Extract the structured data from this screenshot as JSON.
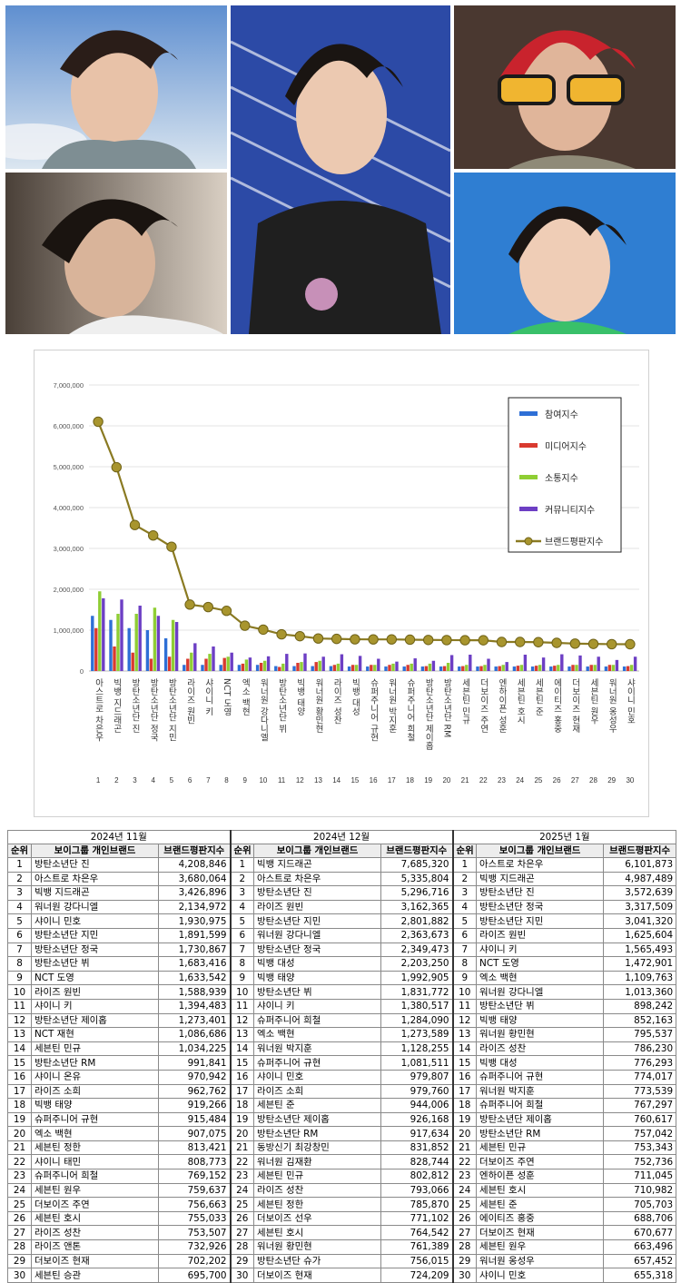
{
  "photos": [
    {
      "name": "photo-top-left",
      "bg": [
        "#6e93c8",
        "#c9d6e4"
      ]
    },
    {
      "name": "photo-bottom-left",
      "bg": [
        "#5a5048",
        "#d6ccc0"
      ]
    },
    {
      "name": "photo-center",
      "bg": [
        "#2b4aa0",
        "#e8e8f0"
      ]
    },
    {
      "name": "photo-top-right",
      "bg": [
        "#3a2a24",
        "#b08a70"
      ]
    },
    {
      "name": "photo-bottom-right",
      "bg": [
        "#2f7fd0",
        "#7fb6e8"
      ]
    }
  ],
  "chart_data": {
    "type": "bar",
    "title": "",
    "xlabel": "",
    "ylabel": "",
    "ylim": [
      0,
      7000000
    ],
    "yticks": [
      "0",
      "1,000,000",
      "2,000,000",
      "3,000,000",
      "4,000,000",
      "5,000,000",
      "6,000,000",
      "7,000,000"
    ],
    "grid": true,
    "legend_position": "top-right",
    "categories": [
      "아스트로 차은우",
      "빅뱅 지드래곤",
      "방탄소년단 진",
      "방탄소년단 정국",
      "방탄소년단 지민",
      "라이즈 원빈",
      "샤이니 키",
      "NCT 도영",
      "엑소 백현",
      "워너원 강다니엘",
      "방탄소년단 뷔",
      "빅뱅 태양",
      "워너원 황민현",
      "라이즈 성찬",
      "빅뱅 대성",
      "슈퍼주니어 규현",
      "워너원 박지훈",
      "슈퍼주니어 희철",
      "방탄소년단 제이홉",
      "방탄소년단 RM",
      "세븐틴 민규",
      "더보이즈 주연",
      "엔하이픈 성훈",
      "세븐틴 호시",
      "세븐틴 준",
      "에이티즈 홍중",
      "더보이즈 현재",
      "세븐틴 원우",
      "워너원 옹성우",
      "샤이니 민호"
    ],
    "rank_labels": [
      "1",
      "2",
      "3",
      "4",
      "5",
      "6",
      "7",
      "8",
      "9",
      "10",
      "11",
      "12",
      "13",
      "14",
      "15",
      "16",
      "17",
      "18",
      "19",
      "20",
      "21",
      "22",
      "23",
      "24",
      "25",
      "26",
      "27",
      "28",
      "29",
      "30"
    ],
    "series": [
      {
        "name": "참여지수",
        "color": "#2e6fd6",
        "type": "bar",
        "values": [
          1350000,
          1250000,
          1050000,
          1000000,
          800000,
          150000,
          150000,
          150000,
          150000,
          150000,
          120000,
          120000,
          120000,
          120000,
          110000,
          110000,
          110000,
          110000,
          110000,
          110000,
          110000,
          110000,
          110000,
          110000,
          110000,
          110000,
          110000,
          110000,
          110000,
          110000
        ]
      },
      {
        "name": "미디어지수",
        "color": "#d93a2f",
        "type": "bar",
        "values": [
          1050000,
          600000,
          450000,
          300000,
          350000,
          300000,
          300000,
          320000,
          180000,
          200000,
          100000,
          200000,
          220000,
          150000,
          150000,
          150000,
          150000,
          150000,
          120000,
          120000,
          120000,
          120000,
          120000,
          130000,
          130000,
          130000,
          150000,
          150000,
          150000,
          120000
        ]
      },
      {
        "name": "소통지수",
        "color": "#8fce34",
        "type": "bar",
        "values": [
          1950000,
          1400000,
          1400000,
          1550000,
          1250000,
          450000,
          420000,
          350000,
          280000,
          250000,
          180000,
          220000,
          250000,
          180000,
          150000,
          150000,
          180000,
          180000,
          180000,
          200000,
          150000,
          150000,
          150000,
          150000,
          150000,
          150000,
          150000,
          150000,
          150000,
          150000
        ]
      },
      {
        "name": "커뮤니티지수",
        "color": "#6d3fc4",
        "type": "bar",
        "values": [
          1780000,
          1750000,
          1600000,
          1350000,
          1200000,
          680000,
          600000,
          450000,
          330000,
          360000,
          420000,
          430000,
          350000,
          410000,
          370000,
          300000,
          230000,
          310000,
          250000,
          390000,
          400000,
          300000,
          220000,
          400000,
          330000,
          410000,
          380000,
          350000,
          270000,
          350000
        ]
      },
      {
        "name": "브랜드평판지수",
        "color": "#8a7a22",
        "type": "line",
        "values": [
          6101873,
          4987489,
          3572639,
          3317509,
          3041320,
          1625604,
          1565493,
          1472901,
          1109763,
          1013360,
          898242,
          852163,
          795537,
          786230,
          776293,
          774017,
          773539,
          767297,
          760617,
          757042,
          753343,
          752736,
          711045,
          710982,
          705703,
          688706,
          670677,
          663496,
          657452,
          655318
        ]
      }
    ]
  },
  "table": {
    "months": [
      "2024년 11월",
      "2024년 12월",
      "2025년 1월"
    ],
    "headers": {
      "rank": "순위",
      "name": "보이그룹 개인브랜드",
      "score": "브랜드평판지수"
    },
    "nov": [
      [
        "1",
        "방탄소년단 진",
        "4,208,846"
      ],
      [
        "2",
        "아스트로 차은우",
        "3,680,064"
      ],
      [
        "3",
        "빅뱅 지드래곤",
        "3,426,896"
      ],
      [
        "4",
        "워너원 강다니엘",
        "2,134,972"
      ],
      [
        "5",
        "샤이니 민호",
        "1,930,975"
      ],
      [
        "6",
        "방탄소년단 지민",
        "1,891,599"
      ],
      [
        "7",
        "방탄소년단 정국",
        "1,730,867"
      ],
      [
        "8",
        "방탄소년단 뷔",
        "1,683,416"
      ],
      [
        "9",
        "NCT 도영",
        "1,633,542"
      ],
      [
        "10",
        "라이즈 원빈",
        "1,588,939"
      ],
      [
        "11",
        "샤이니 키",
        "1,394,483"
      ],
      [
        "12",
        "방탄소년단 제이홉",
        "1,273,401"
      ],
      [
        "13",
        "NCT 재현",
        "1,086,686"
      ],
      [
        "14",
        "세븐틴 민규",
        "1,034,225"
      ],
      [
        "15",
        "방탄소년단 RM",
        "991,841"
      ],
      [
        "16",
        "샤이니 온유",
        "970,942"
      ],
      [
        "17",
        "라이즈 소희",
        "962,762"
      ],
      [
        "18",
        "빅뱅 태양",
        "919,266"
      ],
      [
        "19",
        "슈퍼주니어 규현",
        "915,484"
      ],
      [
        "20",
        "엑소 백현",
        "907,075"
      ],
      [
        "21",
        "세븐틴 정한",
        "813,421"
      ],
      [
        "22",
        "샤이니 태민",
        "808,773"
      ],
      [
        "23",
        "슈퍼주니어 희철",
        "769,152"
      ],
      [
        "24",
        "세븐틴 원우",
        "759,637"
      ],
      [
        "25",
        "더보이즈 주연",
        "756,663"
      ],
      [
        "26",
        "세븐틴 호시",
        "755,033"
      ],
      [
        "27",
        "라이즈 성찬",
        "753,507"
      ],
      [
        "28",
        "라이즈 앤톤",
        "732,926"
      ],
      [
        "29",
        "더보이즈 현재",
        "702,202"
      ],
      [
        "30",
        "세븐틴 승관",
        "695,700"
      ]
    ],
    "dec": [
      [
        "1",
        "빅뱅 지드래곤",
        "7,685,320"
      ],
      [
        "2",
        "아스트로 차은우",
        "5,335,804"
      ],
      [
        "3",
        "방탄소년단 진",
        "5,296,716"
      ],
      [
        "4",
        "라이즈 원빈",
        "3,162,365"
      ],
      [
        "5",
        "방탄소년단 지민",
        "2,801,882"
      ],
      [
        "6",
        "워너원 강다니엘",
        "2,363,673"
      ],
      [
        "7",
        "방탄소년단 정국",
        "2,349,473"
      ],
      [
        "8",
        "빅뱅 대성",
        "2,203,250"
      ],
      [
        "9",
        "빅뱅 태양",
        "1,992,905"
      ],
      [
        "10",
        "방탄소년단 뷔",
        "1,831,772"
      ],
      [
        "11",
        "샤이니 키",
        "1,380,517"
      ],
      [
        "12",
        "슈퍼주니어 희철",
        "1,284,090"
      ],
      [
        "13",
        "엑소 백현",
        "1,273,589"
      ],
      [
        "14",
        "워너원 박지훈",
        "1,128,255"
      ],
      [
        "15",
        "슈퍼주니어 규현",
        "1,081,511"
      ],
      [
        "16",
        "샤이니 민호",
        "979,807"
      ],
      [
        "17",
        "라이즈 소희",
        "979,760"
      ],
      [
        "18",
        "세븐틴 준",
        "944,006"
      ],
      [
        "19",
        "방탄소년단 제이홉",
        "926,168"
      ],
      [
        "20",
        "방탄소년단 RM",
        "917,634"
      ],
      [
        "21",
        "동방신기 최강창민",
        "831,852"
      ],
      [
        "22",
        "워너원 김재환",
        "828,744"
      ],
      [
        "23",
        "세븐틴 민규",
        "802,812"
      ],
      [
        "24",
        "라이즈 성찬",
        "793,066"
      ],
      [
        "25",
        "세븐틴 정한",
        "785,870"
      ],
      [
        "26",
        "더보이즈 선우",
        "771,102"
      ],
      [
        "27",
        "세븐틴 호시",
        "764,542"
      ],
      [
        "28",
        "워너원 황민현",
        "761,389"
      ],
      [
        "29",
        "방탄소년단 슈가",
        "756,015"
      ],
      [
        "30",
        "더보이즈 현재",
        "724,209"
      ]
    ],
    "jan": [
      [
        "1",
        "아스트로 차은우",
        "6,101,873"
      ],
      [
        "2",
        "빅뱅 지드래곤",
        "4,987,489"
      ],
      [
        "3",
        "방탄소년단 진",
        "3,572,639"
      ],
      [
        "4",
        "방탄소년단 정국",
        "3,317,509"
      ],
      [
        "5",
        "방탄소년단 지민",
        "3,041,320"
      ],
      [
        "6",
        "라이즈 원빈",
        "1,625,604"
      ],
      [
        "7",
        "샤이니 키",
        "1,565,493"
      ],
      [
        "8",
        "NCT 도영",
        "1,472,901"
      ],
      [
        "9",
        "엑소 백현",
        "1,109,763"
      ],
      [
        "10",
        "워너원 강다니엘",
        "1,013,360"
      ],
      [
        "11",
        "방탄소년단 뷔",
        "898,242"
      ],
      [
        "12",
        "빅뱅 태양",
        "852,163"
      ],
      [
        "13",
        "워너원 황민현",
        "795,537"
      ],
      [
        "14",
        "라이즈 성찬",
        "786,230"
      ],
      [
        "15",
        "빅뱅 대성",
        "776,293"
      ],
      [
        "16",
        "슈퍼주니어 규현",
        "774,017"
      ],
      [
        "17",
        "워너원 박지훈",
        "773,539"
      ],
      [
        "18",
        "슈퍼주니어 희철",
        "767,297"
      ],
      [
        "19",
        "방탄소년단 제이홉",
        "760,617"
      ],
      [
        "20",
        "방탄소년단 RM",
        "757,042"
      ],
      [
        "21",
        "세븐틴 민규",
        "753,343"
      ],
      [
        "22",
        "더보이즈 주연",
        "752,736"
      ],
      [
        "23",
        "엔하이픈 성훈",
        "711,045"
      ],
      [
        "24",
        "세븐틴 호시",
        "710,982"
      ],
      [
        "25",
        "세븐틴 준",
        "705,703"
      ],
      [
        "26",
        "에이티즈 홍중",
        "688,706"
      ],
      [
        "27",
        "더보이즈 현재",
        "670,677"
      ],
      [
        "28",
        "세븐틴 원우",
        "663,496"
      ],
      [
        "29",
        "워너원 옹성우",
        "657,452"
      ],
      [
        "30",
        "샤이니 민호",
        "655,318"
      ]
    ]
  }
}
